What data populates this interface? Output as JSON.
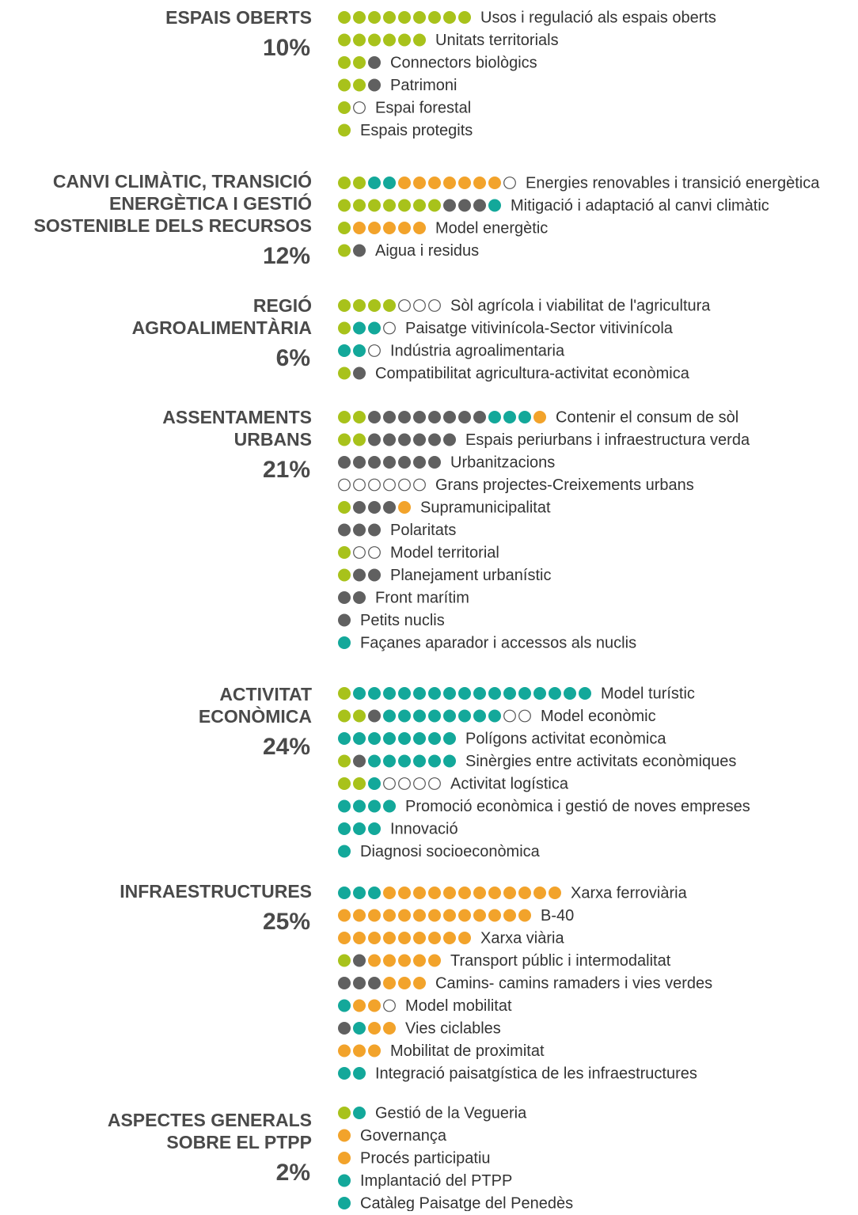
{
  "sections": [
    {
      "title": [
        "ESPAIS OBERTS"
      ],
      "share": "10%",
      "items": [
        {
          "label": "Usos i regulació als espais oberts",
          "dots": [
            "#a8c21b",
            "#a8c21b",
            "#a8c21b",
            "#a8c21b",
            "#a8c21b",
            "#a8c21b",
            "#a8c21b",
            "#a8c21b",
            "#a8c21b"
          ]
        },
        {
          "label": "Unitats territorials",
          "dots": [
            "#a8c21b",
            "#a8c21b",
            "#a8c21b",
            "#a8c21b",
            "#a8c21b",
            "#a8c21b"
          ]
        },
        {
          "label": "Connectors biològics",
          "dots": [
            "#a8c21b",
            "#a8c21b",
            "#606060"
          ]
        },
        {
          "label": "Patrimoni",
          "dots": [
            "#a8c21b",
            "#a8c21b",
            "#606060"
          ]
        },
        {
          "label": "Espai forestal",
          "dots": [
            "#a8c21b",
            "#ffffff"
          ]
        },
        {
          "label": "Espais protegits",
          "dots": [
            "#a8c21b"
          ]
        }
      ]
    },
    {
      "title": [
        "CANVI CLIMÀTIC, TRANSICIÓ",
        "ENERGÈTICA I GESTIÓ",
        "SOSTENIBLE DELS RECURSOS"
      ],
      "share": "12%",
      "items": [
        {
          "label": "Energies renovables i transició energètica",
          "dots": [
            "#a8c21b",
            "#a8c21b",
            "#13a89a",
            "#13a89a",
            "#f2a32b",
            "#f2a32b",
            "#f2a32b",
            "#f2a32b",
            "#f2a32b",
            "#f2a32b",
            "#f2a32b",
            "#ffffff"
          ]
        },
        {
          "label": "Mitigació i adaptació al canvi climàtic",
          "dots": [
            "#a8c21b",
            "#a8c21b",
            "#a8c21b",
            "#a8c21b",
            "#a8c21b",
            "#a8c21b",
            "#a8c21b",
            "#606060",
            "#606060",
            "#606060",
            "#13a89a"
          ]
        },
        {
          "label": "Model energètic",
          "dots": [
            "#a8c21b",
            "#f2a32b",
            "#f2a32b",
            "#f2a32b",
            "#f2a32b",
            "#f2a32b"
          ]
        },
        {
          "label": "Aigua i residus",
          "dots": [
            "#a8c21b",
            "#606060"
          ]
        }
      ]
    },
    {
      "title": [
        "REGIÓ",
        "AGROALIMENTÀRIA"
      ],
      "share": "6%",
      "items": [
        {
          "label": "Sòl agrícola i viabilitat de l'agricultura",
          "dots": [
            "#a8c21b",
            "#a8c21b",
            "#a8c21b",
            "#a8c21b",
            "#ffffff",
            "#ffffff",
            "#ffffff"
          ]
        },
        {
          "label": "Paisatge vitivinícola-Sector vitivinícola",
          "dots": [
            "#a8c21b",
            "#13a89a",
            "#13a89a",
            "#ffffff"
          ]
        },
        {
          "label": "Indústria agroalimentaria",
          "dots": [
            "#13a89a",
            "#13a89a",
            "#ffffff"
          ]
        },
        {
          "label": "Compatibilitat agricultura-activitat econòmica",
          "dots": [
            "#a8c21b",
            "#606060"
          ]
        }
      ]
    },
    {
      "title": [
        "ASSENTAMENTS",
        "URBANS"
      ],
      "share": "21%",
      "items": [
        {
          "label": "Contenir el consum de sòl",
          "dots": [
            "#a8c21b",
            "#a8c21b",
            "#606060",
            "#606060",
            "#606060",
            "#606060",
            "#606060",
            "#606060",
            "#606060",
            "#606060",
            "#13a89a",
            "#13a89a",
            "#13a89a",
            "#f2a32b"
          ]
        },
        {
          "label": "Espais periurbans i infraestructura verda",
          "dots": [
            "#a8c21b",
            "#a8c21b",
            "#606060",
            "#606060",
            "#606060",
            "#606060",
            "#606060",
            "#606060"
          ]
        },
        {
          "label": "Urbanitzacions",
          "dots": [
            "#606060",
            "#606060",
            "#606060",
            "#606060",
            "#606060",
            "#606060",
            "#606060"
          ]
        },
        {
          "label": "Grans projectes-Creixements urbans",
          "dots": [
            "#ffffff",
            "#ffffff",
            "#ffffff",
            "#ffffff",
            "#ffffff",
            "#ffffff"
          ]
        },
        {
          "label": "Supramunicipalitat",
          "dots": [
            "#a8c21b",
            "#606060",
            "#606060",
            "#606060",
            "#f2a32b"
          ]
        },
        {
          "label": "Polaritats",
          "dots": [
            "#606060",
            "#606060",
            "#606060"
          ]
        },
        {
          "label": "Model territorial",
          "dots": [
            "#a8c21b",
            "#ffffff",
            "#ffffff"
          ]
        },
        {
          "label": "Planejament urbanístic",
          "dots": [
            "#a8c21b",
            "#606060",
            "#606060"
          ]
        },
        {
          "label": "Front marítim",
          "dots": [
            "#606060",
            "#606060"
          ]
        },
        {
          "label": "Petits nuclis",
          "dots": [
            "#606060"
          ]
        },
        {
          "label": "Façanes aparador i accessos als nuclis",
          "dots": [
            "#13a89a"
          ]
        }
      ]
    },
    {
      "title": [
        "ACTIVITAT",
        "ECONÒMICA"
      ],
      "share": "24%",
      "items": [
        {
          "label": "Model turístic",
          "dots": [
            "#a8c21b",
            "#13a89a",
            "#13a89a",
            "#13a89a",
            "#13a89a",
            "#13a89a",
            "#13a89a",
            "#13a89a",
            "#13a89a",
            "#13a89a",
            "#13a89a",
            "#13a89a",
            "#13a89a",
            "#13a89a",
            "#13a89a",
            "#13a89a",
            "#13a89a"
          ]
        },
        {
          "label": "Model econòmic",
          "dots": [
            "#a8c21b",
            "#a8c21b",
            "#606060",
            "#13a89a",
            "#13a89a",
            "#13a89a",
            "#13a89a",
            "#13a89a",
            "#13a89a",
            "#13a89a",
            "#13a89a",
            "#ffffff",
            "#ffffff"
          ]
        },
        {
          "label": "Polígons activitat econòmica",
          "dots": [
            "#13a89a",
            "#13a89a",
            "#13a89a",
            "#13a89a",
            "#13a89a",
            "#13a89a",
            "#13a89a",
            "#13a89a"
          ]
        },
        {
          "label": "Sinèrgies entre activitats econòmiques",
          "dots": [
            "#a8c21b",
            "#606060",
            "#13a89a",
            "#13a89a",
            "#13a89a",
            "#13a89a",
            "#13a89a",
            "#13a89a"
          ]
        },
        {
          "label": "Activitat logística",
          "dots": [
            "#a8c21b",
            "#a8c21b",
            "#13a89a",
            "#ffffff",
            "#ffffff",
            "#ffffff",
            "#ffffff"
          ]
        },
        {
          "label": "Promoció econòmica i gestió de noves empreses",
          "dots": [
            "#13a89a",
            "#13a89a",
            "#13a89a",
            "#13a89a"
          ]
        },
        {
          "label": "Innovació",
          "dots": [
            "#13a89a",
            "#13a89a",
            "#13a89a"
          ]
        },
        {
          "label": "Diagnosi socioeconòmica",
          "dots": [
            "#13a89a"
          ]
        }
      ]
    },
    {
      "title": [
        "INFRAESTRUCTURES"
      ],
      "share": "25%",
      "items": [
        {
          "label": "Xarxa ferroviària",
          "dots": [
            "#13a89a",
            "#13a89a",
            "#13a89a",
            "#f2a32b",
            "#f2a32b",
            "#f2a32b",
            "#f2a32b",
            "#f2a32b",
            "#f2a32b",
            "#f2a32b",
            "#f2a32b",
            "#f2a32b",
            "#f2a32b",
            "#f2a32b",
            "#f2a32b"
          ]
        },
        {
          "label": "B-40",
          "dots": [
            "#f2a32b",
            "#f2a32b",
            "#f2a32b",
            "#f2a32b",
            "#f2a32b",
            "#f2a32b",
            "#f2a32b",
            "#f2a32b",
            "#f2a32b",
            "#f2a32b",
            "#f2a32b",
            "#f2a32b",
            "#f2a32b"
          ]
        },
        {
          "label": "Xarxa viària",
          "dots": [
            "#f2a32b",
            "#f2a32b",
            "#f2a32b",
            "#f2a32b",
            "#f2a32b",
            "#f2a32b",
            "#f2a32b",
            "#f2a32b",
            "#f2a32b"
          ]
        },
        {
          "label": "Transport públic i intermodalitat",
          "dots": [
            "#a8c21b",
            "#606060",
            "#f2a32b",
            "#f2a32b",
            "#f2a32b",
            "#f2a32b",
            "#f2a32b"
          ]
        },
        {
          "label": "Camins- camins ramaders i vies verdes",
          "dots": [
            "#606060",
            "#606060",
            "#606060",
            "#f2a32b",
            "#f2a32b",
            "#f2a32b"
          ]
        },
        {
          "label": "Model mobilitat",
          "dots": [
            "#13a89a",
            "#f2a32b",
            "#f2a32b",
            "#ffffff"
          ]
        },
        {
          "label": "Vies ciclables",
          "dots": [
            "#606060",
            "#13a89a",
            "#f2a32b",
            "#f2a32b"
          ]
        },
        {
          "label": "Mobilitat de proximitat",
          "dots": [
            "#f2a32b",
            "#f2a32b",
            "#f2a32b"
          ]
        },
        {
          "label": "Integració paisatgística de les infraestructures",
          "dots": [
            "#13a89a",
            "#13a89a"
          ]
        }
      ]
    },
    {
      "title": [
        "ASPECTES GENERALS",
        "SOBRE EL PTPP"
      ],
      "share": "2%",
      "items": [
        {
          "label": "Gestió de la Vegueria",
          "dots": [
            "#a8c21b",
            "#13a89a"
          ]
        },
        {
          "label": "Governança",
          "dots": [
            "#f2a32b"
          ]
        },
        {
          "label": "Procés participatiu",
          "dots": [
            "#f2a32b"
          ]
        },
        {
          "label": "Implantació del PTPP",
          "dots": [
            "#13a89a"
          ]
        },
        {
          "label": "Catàleg Paisatge del Penedès",
          "dots": [
            "#13a89a"
          ]
        }
      ]
    }
  ]
}
